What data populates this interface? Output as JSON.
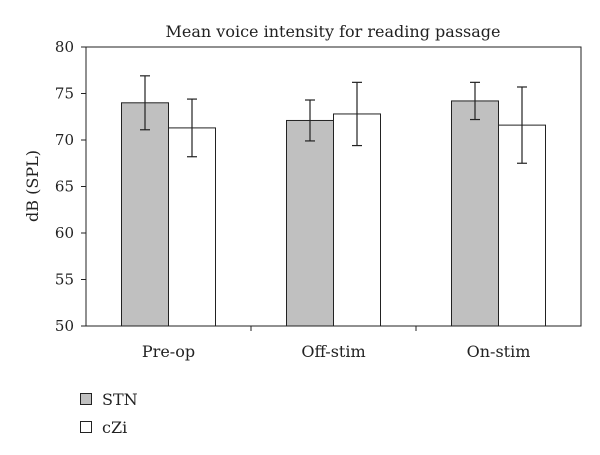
{
  "chart_data": {
    "type": "bar",
    "title": "Mean voice intensity for reading passage",
    "ylabel": "dB (SPL)",
    "xlabel": "",
    "ylim": [
      50,
      80
    ],
    "yticks": [
      50,
      55,
      60,
      65,
      70,
      75,
      80
    ],
    "categories": [
      "Pre-op",
      "Off-stim",
      "On-stim"
    ],
    "grid": false,
    "legend_position": "bottom-left",
    "series": [
      {
        "name": "STN",
        "color": "#c0c0c0",
        "values": [
          74.0,
          72.1,
          74.2
        ],
        "error": [
          2.9,
          2.2,
          2.0
        ]
      },
      {
        "name": "cZi",
        "color": "#ffffff",
        "values": [
          71.3,
          72.8,
          71.6
        ],
        "error": [
          3.1,
          3.4,
          4.1
        ]
      }
    ]
  }
}
